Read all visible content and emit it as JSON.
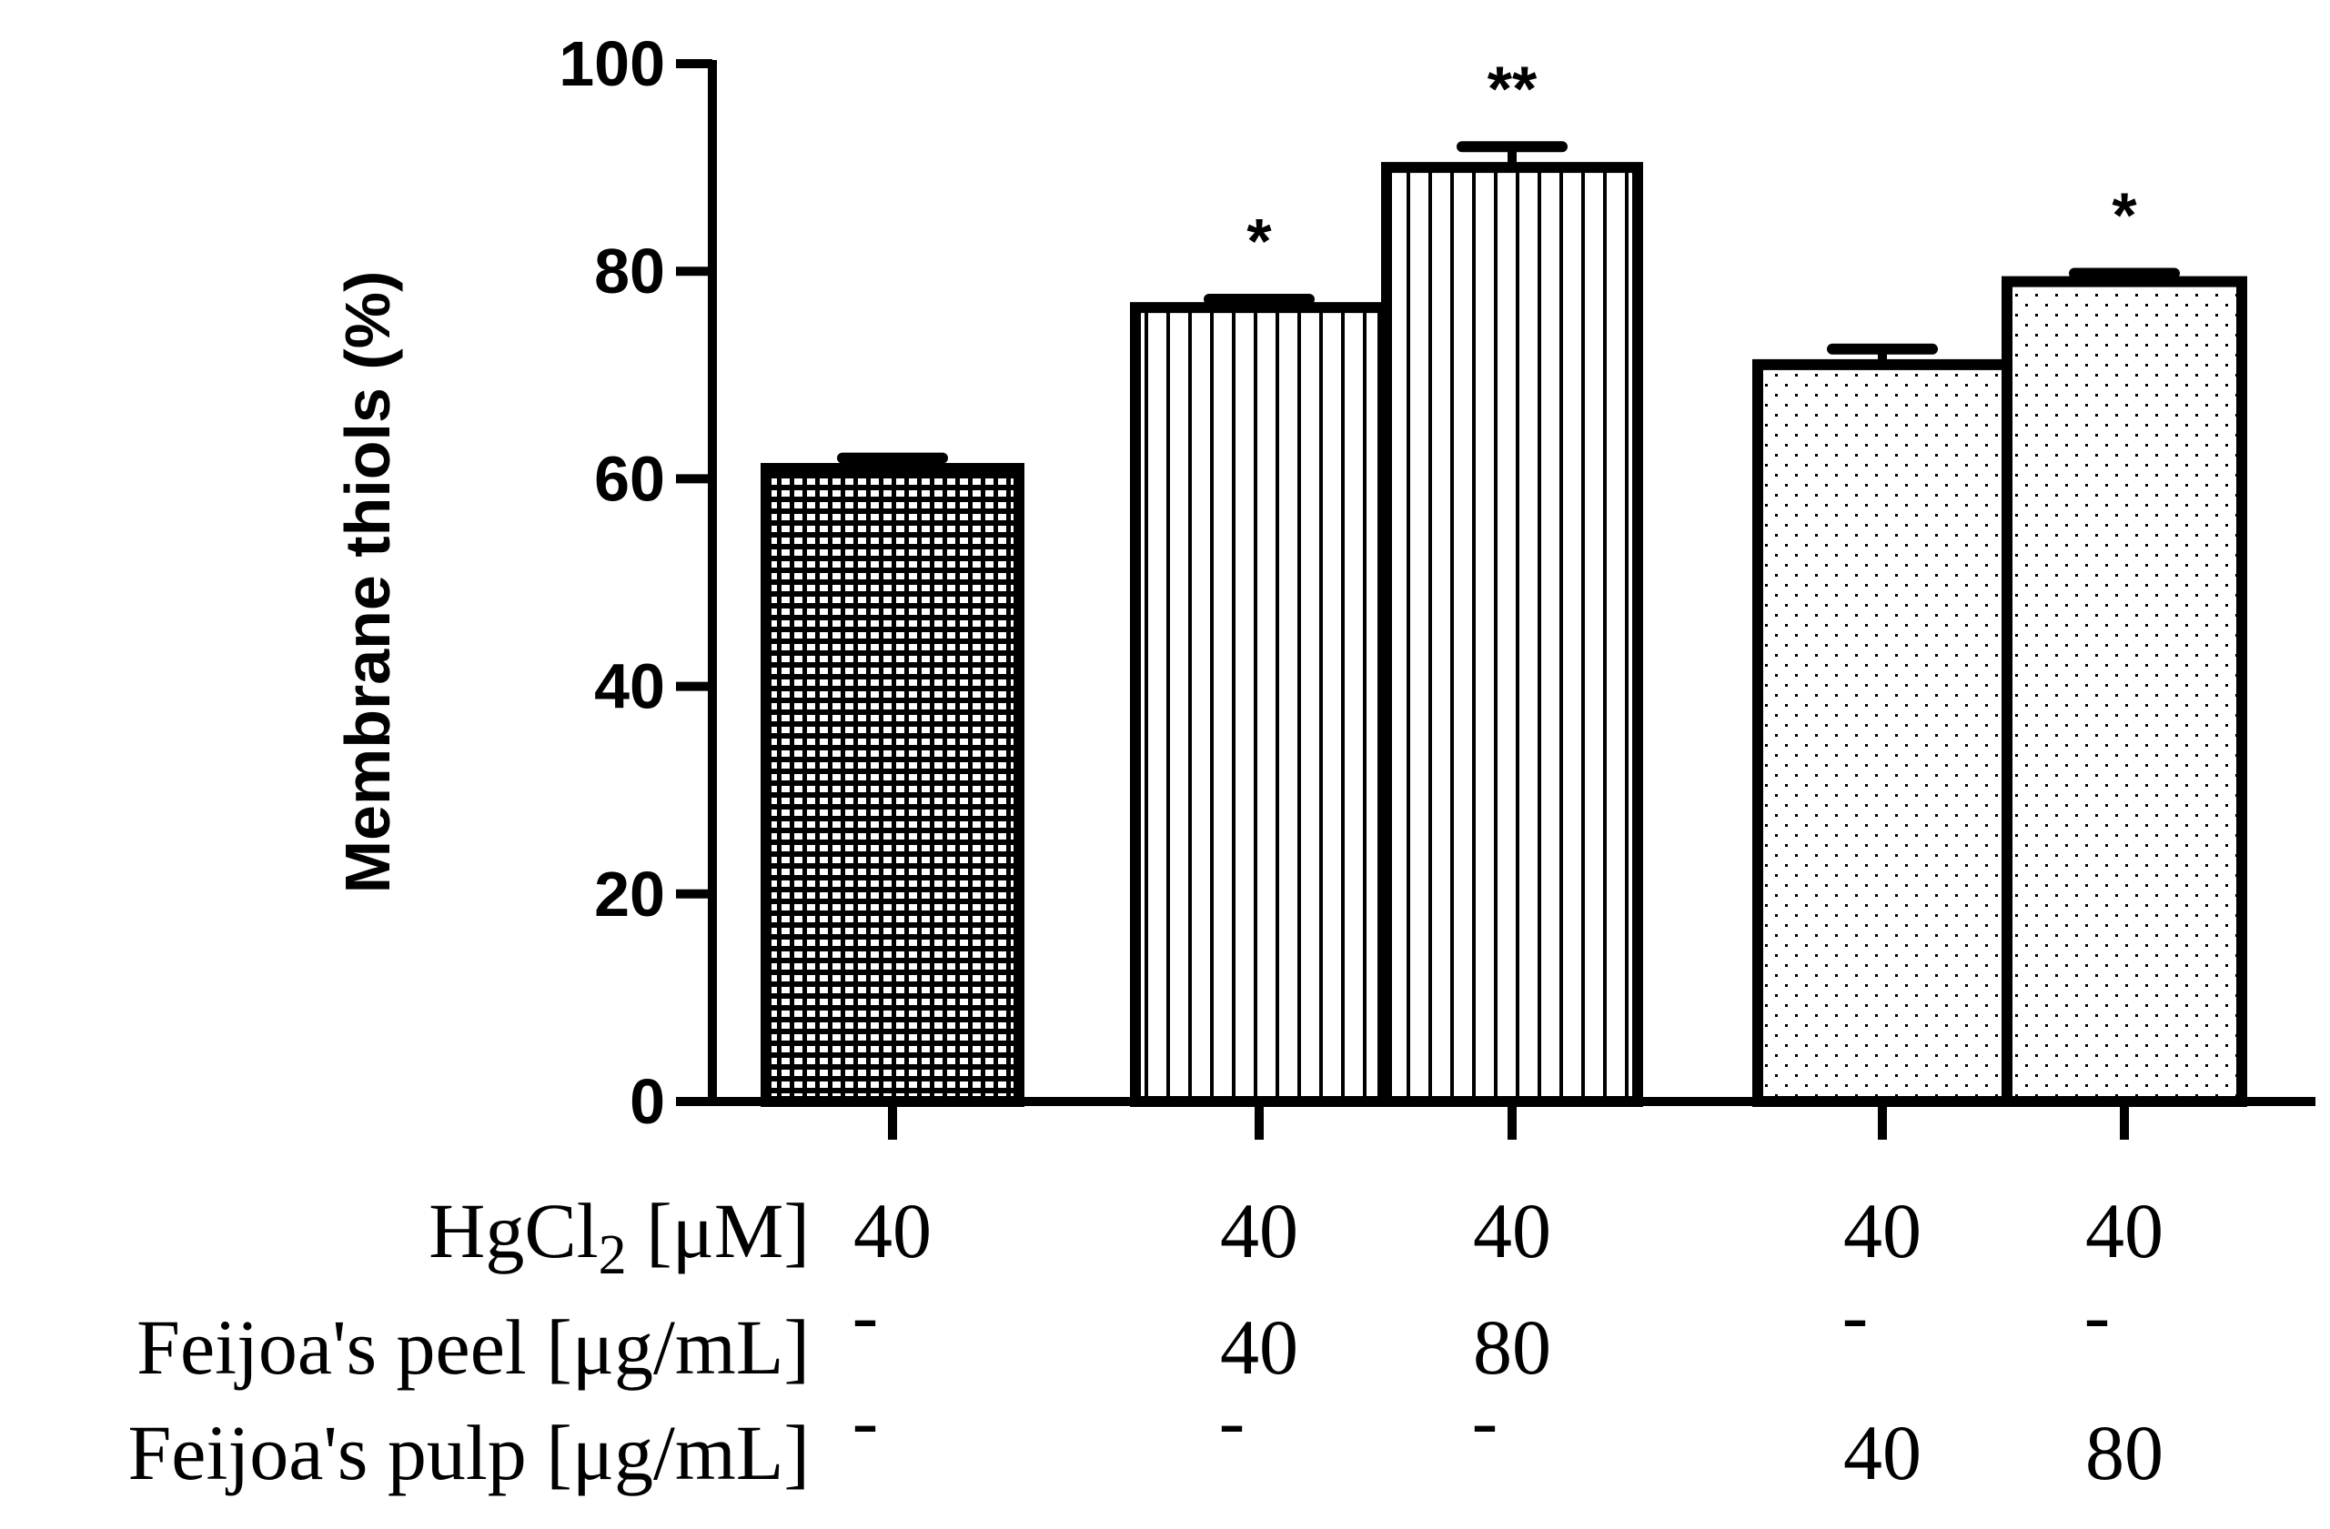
{
  "chart_data": {
    "type": "bar",
    "title": "",
    "ylabel": "Membrane thiols (%)",
    "xlabel": "",
    "ylim": [
      0,
      100
    ],
    "yticks": [
      0,
      20,
      40,
      60,
      80,
      100
    ],
    "grid": false,
    "bars": [
      {
        "group": 1,
        "value": 61,
        "error": 1,
        "pattern": "grid",
        "significance": ""
      },
      {
        "group": 2,
        "value": 76.5,
        "error": 0.8,
        "pattern": "vertical-lines",
        "significance": "*"
      },
      {
        "group": 2,
        "value": 90,
        "error": 2,
        "pattern": "vertical-lines",
        "significance": "**"
      },
      {
        "group": 3,
        "value": 71,
        "error": 1.5,
        "pattern": "dots",
        "significance": ""
      },
      {
        "group": 3,
        "value": 79,
        "error": 0.8,
        "pattern": "dots",
        "significance": "*"
      }
    ],
    "treatment_rows": [
      {
        "label_main": "HgCl",
        "label_sub": "2",
        "label_unit": " [μM]",
        "values": [
          "40",
          "40",
          "40",
          "40",
          "40"
        ]
      },
      {
        "label_main": "Feijoa's peel",
        "label_sub": "",
        "label_unit": " [μg/mL]",
        "values": [
          "-",
          "40",
          "80",
          "-",
          "-"
        ]
      },
      {
        "label_main": "Feijoa's pulp",
        "label_sub": "",
        "label_unit": " [μg/mL]",
        "values": [
          "-",
          "-",
          "-",
          "40",
          "80"
        ]
      }
    ]
  },
  "colors": {
    "ink": "#000000",
    "background": "#ffffff"
  }
}
